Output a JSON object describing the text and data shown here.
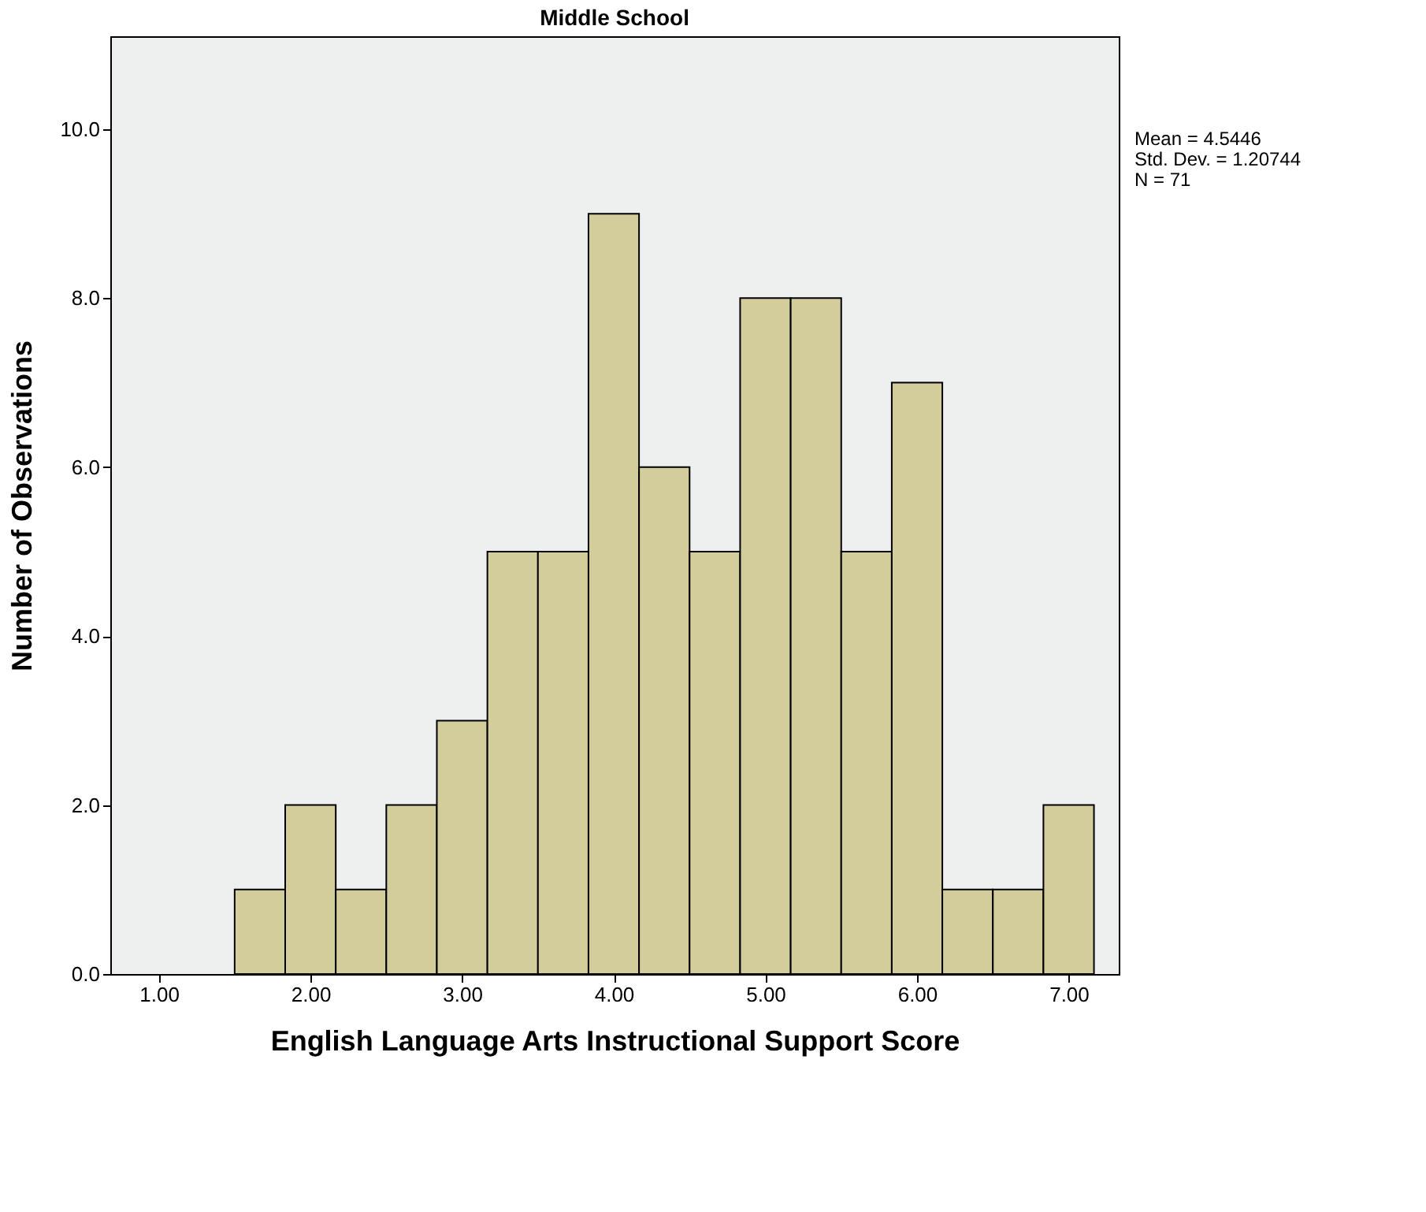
{
  "chart_data": {
    "type": "histogram",
    "title": "Middle School",
    "xlabel": "English Language Arts Instructional Support Score",
    "ylabel": "Number of Observations",
    "bins": [
      1.5,
      1.8333,
      2.1667,
      2.5,
      2.8333,
      3.1667,
      3.5,
      3.8333,
      4.1667,
      4.5,
      4.8333,
      5.1667,
      5.5,
      5.8333,
      6.1667,
      6.5,
      6.8333,
      7.1667
    ],
    "values": [
      1,
      2,
      1,
      2,
      3,
      5,
      5,
      9,
      6,
      5,
      8,
      8,
      5,
      7,
      1,
      1,
      2
    ],
    "color": "#d3cd9b",
    "xlim": [
      0.68,
      7.33
    ],
    "ylim": [
      0,
      11.1
    ],
    "xticks": [
      {
        "value": 1,
        "label": "1.00"
      },
      {
        "value": 2,
        "label": "2.00"
      },
      {
        "value": 3,
        "label": "3.00"
      },
      {
        "value": 4,
        "label": "4.00"
      },
      {
        "value": 5,
        "label": "5.00"
      },
      {
        "value": 6,
        "label": "6.00"
      },
      {
        "value": 7,
        "label": "7.00"
      }
    ],
    "yticks": [
      {
        "value": 0,
        "label": "0.0"
      },
      {
        "value": 2,
        "label": "2.0"
      },
      {
        "value": 4,
        "label": "4.0"
      },
      {
        "value": 6,
        "label": "6.0"
      },
      {
        "value": 8,
        "label": "8.0"
      },
      {
        "value": 10,
        "label": "10.0"
      }
    ],
    "annotations": [
      "Mean = 4.5446",
      "Std. Dev. = 1.20744",
      "N = 71"
    ],
    "grid": false
  }
}
